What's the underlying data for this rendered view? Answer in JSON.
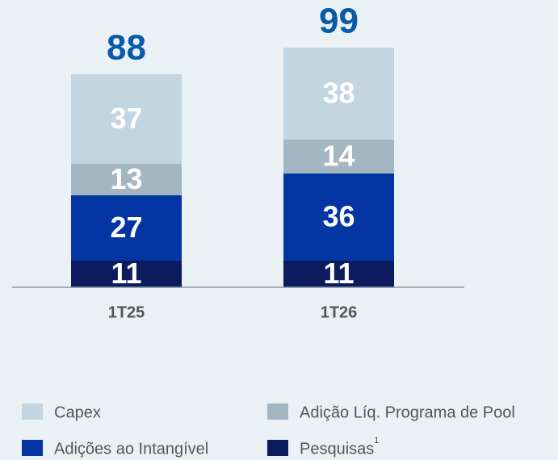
{
  "chart_data": {
    "type": "stacked_bar",
    "categories": [
      "1T25",
      "1T26"
    ],
    "series": [
      {
        "name": "Pesquisas",
        "footnote": "1",
        "color": "#0b1b5e",
        "values": [
          11,
          11
        ]
      },
      {
        "name": "Adições ao Intangível",
        "color": "#0336a3",
        "values": [
          27,
          36
        ]
      },
      {
        "name": "Adição Líq. Programa de Pool",
        "color": "#a4b6c1",
        "values": [
          13,
          14
        ]
      },
      {
        "name": "Capex",
        "color": "#c3d5e1",
        "values": [
          37,
          38
        ]
      }
    ],
    "totals": [
      88,
      99
    ],
    "total_color": "#0a5aa8"
  }
}
